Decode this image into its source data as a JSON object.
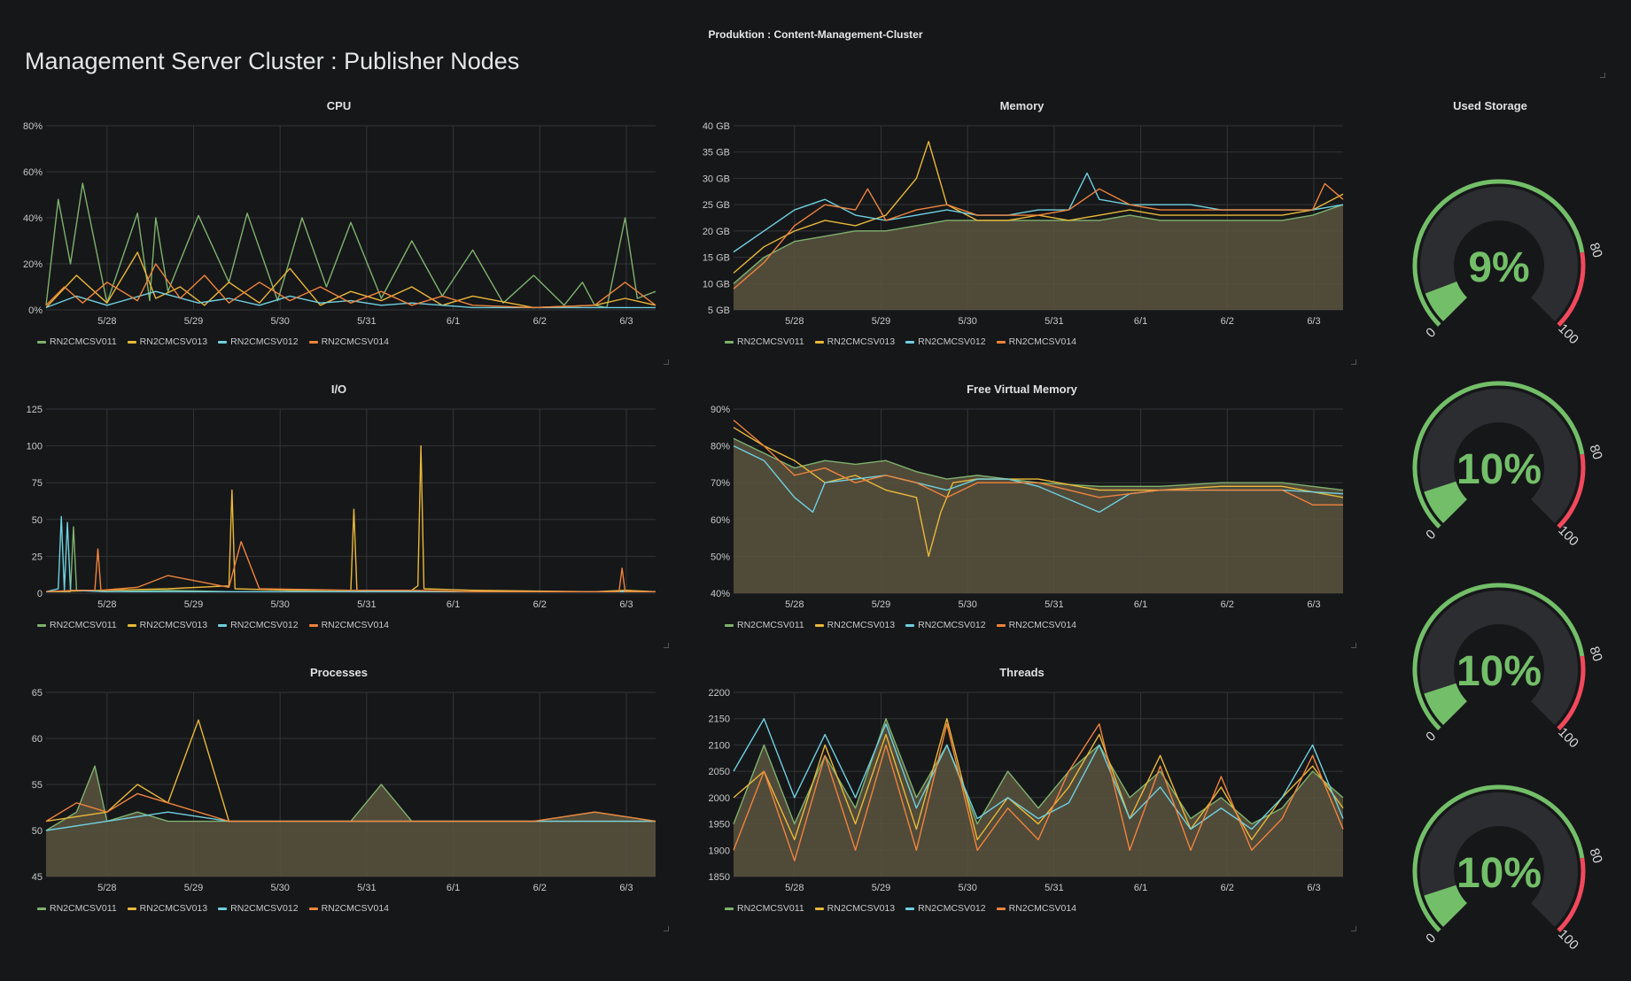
{
  "breadcrumb": "Produktion : Content-Management-Cluster",
  "title": "Management Server Cluster : Publisher Nodes",
  "colors": {
    "RN2CMCSV011": "#7eb26d",
    "RN2CMCSV013": "#eab839",
    "RN2CMCSV012": "#6ed0e0",
    "RN2CMCSV014": "#ef843c",
    "fill": "#5a5440",
    "grid": "#333539",
    "gauge_green": "#73bf69",
    "gauge_red": "#f2495c",
    "gauge_track": "#2c2d30"
  },
  "legend": [
    "RN2CMCSV011",
    "RN2CMCSV013",
    "RN2CMCSV012",
    "RN2CMCSV014"
  ],
  "x_ticks": [
    "5/28",
    "5/29",
    "5/30",
    "5/31",
    "6/1",
    "6/2",
    "6/3"
  ],
  "chart_data": [
    {
      "id": "cpu",
      "type": "line",
      "title": "CPU",
      "y_ticks": [
        "0%",
        "20%",
        "40%",
        "60%",
        "80%"
      ],
      "ylim": [
        0,
        80
      ],
      "series": [
        {
          "name": "RN2CMCSV011",
          "x": [
            0,
            0.02,
            0.04,
            0.06,
            0.1,
            0.15,
            0.17,
            0.18,
            0.2,
            0.25,
            0.3,
            0.33,
            0.38,
            0.42,
            0.46,
            0.5,
            0.55,
            0.6,
            0.65,
            0.7,
            0.75,
            0.8,
            0.85,
            0.88,
            0.9,
            0.92,
            0.95,
            0.97,
            1
          ],
          "y": [
            2,
            48,
            20,
            55,
            3,
            42,
            4,
            40,
            8,
            41,
            12,
            42,
            4,
            40,
            10,
            38,
            5,
            30,
            6,
            26,
            3,
            15,
            2,
            12,
            2,
            1,
            40,
            5,
            8
          ]
        },
        {
          "name": "RN2CMCSV013",
          "x": [
            0,
            0.05,
            0.1,
            0.15,
            0.18,
            0.22,
            0.26,
            0.3,
            0.35,
            0.4,
            0.45,
            0.5,
            0.55,
            0.6,
            0.65,
            0.7,
            0.8,
            0.9,
            0.95,
            1
          ],
          "y": [
            1,
            15,
            3,
            25,
            5,
            10,
            2,
            12,
            3,
            18,
            2,
            8,
            4,
            10,
            2,
            6,
            1,
            2,
            5,
            2
          ]
        },
        {
          "name": "RN2CMCSV012",
          "x": [
            0,
            0.05,
            0.1,
            0.18,
            0.25,
            0.3,
            0.35,
            0.4,
            0.45,
            0.5,
            0.55,
            0.6,
            0.7,
            0.8,
            0.9,
            1
          ],
          "y": [
            1,
            6,
            2,
            8,
            3,
            5,
            2,
            6,
            3,
            4,
            2,
            3,
            1,
            1,
            1,
            1
          ]
        },
        {
          "name": "RN2CMCSV014",
          "x": [
            0,
            0.03,
            0.06,
            0.1,
            0.15,
            0.18,
            0.22,
            0.26,
            0.3,
            0.35,
            0.4,
            0.45,
            0.5,
            0.55,
            0.6,
            0.65,
            0.7,
            0.8,
            0.9,
            0.95,
            1
          ],
          "y": [
            2,
            10,
            3,
            12,
            4,
            20,
            5,
            15,
            3,
            12,
            4,
            10,
            3,
            8,
            2,
            6,
            2,
            1,
            2,
            12,
            2
          ]
        }
      ]
    },
    {
      "id": "memory",
      "type": "area",
      "title": "Memory",
      "y_ticks": [
        "5 GB",
        "10 GB",
        "15 GB",
        "20 GB",
        "25 GB",
        "30 GB",
        "35 GB",
        "40 GB"
      ],
      "ylim": [
        5,
        40
      ],
      "series": [
        {
          "name": "RN2CMCSV011",
          "x": [
            0,
            0.05,
            0.1,
            0.15,
            0.2,
            0.25,
            0.3,
            0.35,
            0.4,
            0.45,
            0.5,
            0.55,
            0.6,
            0.65,
            0.7,
            0.75,
            0.8,
            0.85,
            0.9,
            0.95,
            1
          ],
          "y": [
            10,
            15,
            18,
            19,
            20,
            20,
            21,
            22,
            22,
            22,
            22,
            22,
            22,
            23,
            22,
            22,
            22,
            22,
            22,
            23,
            25
          ]
        },
        {
          "name": "RN2CMCSV013",
          "x": [
            0,
            0.05,
            0.1,
            0.15,
            0.2,
            0.25,
            0.3,
            0.32,
            0.35,
            0.4,
            0.45,
            0.5,
            0.55,
            0.6,
            0.65,
            0.7,
            0.75,
            0.8,
            0.85,
            0.9,
            0.95,
            1
          ],
          "y": [
            12,
            17,
            20,
            22,
            21,
            23,
            30,
            37,
            25,
            22,
            22,
            23,
            22,
            23,
            24,
            23,
            23,
            23,
            23,
            23,
            24,
            27
          ]
        },
        {
          "name": "RN2CMCSV012",
          "x": [
            0,
            0.05,
            0.1,
            0.15,
            0.2,
            0.25,
            0.3,
            0.35,
            0.4,
            0.45,
            0.5,
            0.55,
            0.58,
            0.6,
            0.65,
            0.7,
            0.75,
            0.8,
            0.85,
            0.9,
            0.95,
            1
          ],
          "y": [
            16,
            20,
            24,
            26,
            23,
            22,
            23,
            24,
            23,
            23,
            24,
            24,
            31,
            26,
            25,
            25,
            25,
            24,
            24,
            24,
            24,
            25
          ]
        },
        {
          "name": "RN2CMCSV014",
          "x": [
            0,
            0.05,
            0.1,
            0.15,
            0.2,
            0.22,
            0.25,
            0.3,
            0.35,
            0.4,
            0.45,
            0.5,
            0.55,
            0.6,
            0.65,
            0.7,
            0.75,
            0.8,
            0.85,
            0.9,
            0.95,
            0.97,
            1
          ],
          "y": [
            9,
            14,
            21,
            25,
            24,
            28,
            22,
            24,
            25,
            23,
            23,
            23,
            24,
            28,
            25,
            24,
            24,
            24,
            24,
            24,
            24,
            29,
            26
          ]
        }
      ]
    },
    {
      "id": "io",
      "type": "line",
      "title": "I/O",
      "y_ticks": [
        "0",
        "25",
        "50",
        "75",
        "100",
        "125"
      ],
      "ylim": [
        0,
        125
      ],
      "series": [
        {
          "name": "RN2CMCSV011",
          "x": [
            0,
            0.04,
            0.045,
            0.05,
            0.1,
            0.2,
            0.3,
            0.5,
            0.7,
            0.9,
            1
          ],
          "y": [
            1,
            1,
            45,
            2,
            1,
            2,
            1,
            1,
            1,
            1,
            1
          ]
        },
        {
          "name": "RN2CMCSV013",
          "x": [
            0,
            0.1,
            0.2,
            0.3,
            0.305,
            0.31,
            0.4,
            0.5,
            0.505,
            0.51,
            0.6,
            0.61,
            0.615,
            0.62,
            0.7,
            0.9,
            0.95,
            1
          ],
          "y": [
            1,
            2,
            3,
            5,
            70,
            3,
            2,
            2,
            57,
            2,
            2,
            5,
            100,
            3,
            2,
            1,
            2,
            1
          ]
        },
        {
          "name": "RN2CMCSV012",
          "x": [
            0,
            0.02,
            0.025,
            0.03,
            0.035,
            0.04,
            0.1,
            0.3,
            0.5,
            0.7,
            1
          ],
          "y": [
            1,
            3,
            52,
            2,
            48,
            2,
            1,
            1,
            1,
            1,
            1
          ]
        },
        {
          "name": "RN2CMCSV014",
          "x": [
            0,
            0.05,
            0.08,
            0.085,
            0.09,
            0.15,
            0.2,
            0.3,
            0.32,
            0.35,
            0.5,
            0.6,
            0.7,
            0.9,
            0.94,
            0.945,
            0.95,
            1
          ],
          "y": [
            1,
            2,
            2,
            30,
            2,
            4,
            12,
            4,
            35,
            3,
            2,
            2,
            1,
            1,
            1,
            17,
            1,
            1
          ]
        }
      ]
    },
    {
      "id": "free-virtual-memory",
      "type": "area",
      "title": "Free Virtual Memory",
      "y_ticks": [
        "40%",
        "50%",
        "60%",
        "70%",
        "80%",
        "90%"
      ],
      "ylim": [
        40,
        90
      ],
      "series": [
        {
          "name": "RN2CMCSV011",
          "x": [
            0,
            0.05,
            0.1,
            0.15,
            0.2,
            0.25,
            0.3,
            0.35,
            0.4,
            0.45,
            0.5,
            0.6,
            0.7,
            0.8,
            0.9,
            1
          ],
          "y": [
            82,
            78,
            74,
            76,
            75,
            76,
            73,
            71,
            72,
            71,
            70,
            69,
            69,
            70,
            70,
            68
          ]
        },
        {
          "name": "RN2CMCSV013",
          "x": [
            0,
            0.05,
            0.1,
            0.15,
            0.2,
            0.25,
            0.3,
            0.32,
            0.34,
            0.36,
            0.4,
            0.5,
            0.6,
            0.7,
            0.8,
            0.9,
            1
          ],
          "y": [
            85,
            80,
            76,
            70,
            72,
            68,
            66,
            50,
            62,
            70,
            71,
            71,
            68,
            68,
            69,
            69,
            66
          ]
        },
        {
          "name": "RN2CMCSV012",
          "x": [
            0,
            0.05,
            0.1,
            0.13,
            0.15,
            0.2,
            0.25,
            0.3,
            0.35,
            0.4,
            0.45,
            0.5,
            0.6,
            0.65,
            0.7,
            0.8,
            0.9,
            1
          ],
          "y": [
            80,
            76,
            66,
            62,
            70,
            71,
            72,
            70,
            68,
            71,
            71,
            69,
            62,
            67,
            68,
            68,
            68,
            67
          ]
        },
        {
          "name": "RN2CMCSV014",
          "x": [
            0,
            0.05,
            0.1,
            0.15,
            0.2,
            0.25,
            0.3,
            0.35,
            0.4,
            0.5,
            0.6,
            0.7,
            0.8,
            0.9,
            0.95,
            1
          ],
          "y": [
            87,
            80,
            72,
            74,
            70,
            72,
            70,
            66,
            70,
            70,
            66,
            68,
            68,
            68,
            64,
            64
          ]
        }
      ]
    },
    {
      "id": "processes",
      "type": "area",
      "title": "Processes",
      "y_ticks": [
        "45",
        "50",
        "55",
        "60",
        "65"
      ],
      "ylim": [
        45,
        65
      ],
      "series": [
        {
          "name": "RN2CMCSV011",
          "x": [
            0,
            0.05,
            0.08,
            0.1,
            0.15,
            0.2,
            0.3,
            0.4,
            0.5,
            0.55,
            0.6,
            0.7,
            0.8,
            0.9,
            1
          ],
          "y": [
            50,
            52,
            57,
            51,
            52,
            51,
            51,
            51,
            51,
            55,
            51,
            51,
            51,
            52,
            51
          ]
        },
        {
          "name": "RN2CMCSV013",
          "x": [
            0,
            0.1,
            0.15,
            0.2,
            0.25,
            0.3,
            0.4,
            0.5,
            0.6,
            0.7,
            0.8,
            0.9,
            1
          ],
          "y": [
            51,
            52,
            55,
            53,
            62,
            51,
            51,
            51,
            51,
            51,
            51,
            51,
            51
          ]
        },
        {
          "name": "RN2CMCSV012",
          "x": [
            0,
            0.1,
            0.2,
            0.3,
            0.4,
            0.5,
            0.6,
            0.7,
            0.8,
            0.9,
            1
          ],
          "y": [
            50,
            51,
            52,
            51,
            51,
            51,
            51,
            51,
            51,
            51,
            51
          ]
        },
        {
          "name": "RN2CMCSV014",
          "x": [
            0,
            0.05,
            0.1,
            0.15,
            0.2,
            0.25,
            0.3,
            0.4,
            0.5,
            0.6,
            0.7,
            0.8,
            0.9,
            1
          ],
          "y": [
            51,
            53,
            52,
            54,
            53,
            52,
            51,
            51,
            51,
            51,
            51,
            51,
            52,
            51
          ]
        }
      ]
    },
    {
      "id": "threads",
      "type": "area",
      "title": "Threads",
      "y_ticks": [
        "1850",
        "1900",
        "1950",
        "2000",
        "2050",
        "2100",
        "2150",
        "2200"
      ],
      "ylim": [
        1850,
        2200
      ],
      "series": [
        {
          "name": "RN2CMCSV011",
          "x": [
            0,
            0.05,
            0.1,
            0.15,
            0.2,
            0.25,
            0.3,
            0.35,
            0.4,
            0.45,
            0.5,
            0.55,
            0.6,
            0.65,
            0.7,
            0.75,
            0.8,
            0.85,
            0.9,
            0.95,
            1
          ],
          "y": [
            1950,
            2100,
            1950,
            2080,
            1980,
            2150,
            2000,
            2100,
            1950,
            2050,
            1980,
            2050,
            2100,
            2000,
            2050,
            1960,
            2000,
            1950,
            1980,
            2050,
            2000
          ]
        },
        {
          "name": "RN2CMCSV013",
          "x": [
            0,
            0.05,
            0.1,
            0.15,
            0.2,
            0.25,
            0.3,
            0.35,
            0.4,
            0.45,
            0.5,
            0.55,
            0.6,
            0.65,
            0.7,
            0.75,
            0.8,
            0.85,
            0.9,
            0.95,
            1
          ],
          "y": [
            2000,
            2050,
            1920,
            2100,
            1950,
            2120,
            1940,
            2150,
            1920,
            2000,
            1950,
            2020,
            2120,
            1960,
            2080,
            1940,
            2020,
            1920,
            2000,
            2060,
            1980
          ]
        },
        {
          "name": "RN2CMCSV012",
          "x": [
            0,
            0.05,
            0.1,
            0.15,
            0.2,
            0.25,
            0.3,
            0.35,
            0.4,
            0.45,
            0.5,
            0.55,
            0.6,
            0.65,
            0.7,
            0.75,
            0.8,
            0.85,
            0.9,
            0.95,
            1
          ],
          "y": [
            2050,
            2150,
            2000,
            2120,
            2000,
            2140,
            1980,
            2100,
            1960,
            2000,
            1960,
            1990,
            2100,
            1960,
            2020,
            1940,
            1980,
            1940,
            2000,
            2100,
            1960
          ]
        },
        {
          "name": "RN2CMCSV014",
          "x": [
            0,
            0.05,
            0.1,
            0.15,
            0.2,
            0.25,
            0.3,
            0.35,
            0.4,
            0.45,
            0.5,
            0.55,
            0.6,
            0.65,
            0.7,
            0.75,
            0.8,
            0.85,
            0.9,
            0.95,
            1
          ],
          "y": [
            1900,
            2050,
            1880,
            2080,
            1900,
            2100,
            1900,
            2140,
            1900,
            1980,
            1920,
            2050,
            2140,
            1900,
            2060,
            1900,
            2040,
            1900,
            1960,
            2080,
            1940
          ]
        }
      ]
    }
  ],
  "storage": {
    "title": "Used Storage",
    "gauges": [
      {
        "value": 9,
        "label": "9%"
      },
      {
        "value": 10,
        "label": "10%"
      },
      {
        "value": 10,
        "label": "10%"
      },
      {
        "value": 10,
        "label": "10%"
      }
    ],
    "min_label": "0",
    "threshold_label": "80",
    "max_label": "100",
    "min": 0,
    "threshold": 80,
    "max": 100
  }
}
